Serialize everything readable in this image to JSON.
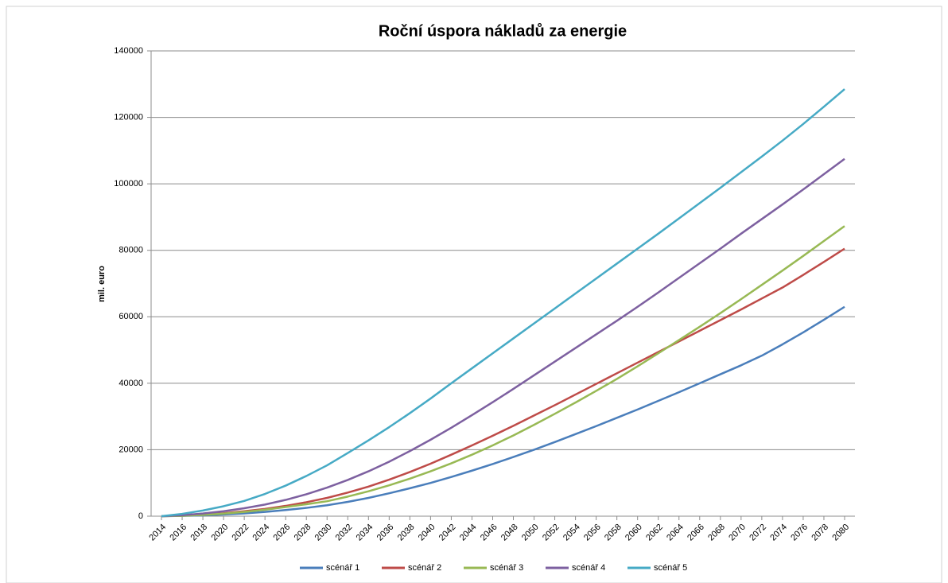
{
  "chart_data": {
    "type": "line",
    "title": "Roční úspora nákladů za energie",
    "y_label": "mil. euro",
    "categories": [
      "2014",
      "2016",
      "2018",
      "2020",
      "2022",
      "2024",
      "2026",
      "2028",
      "2030",
      "2032",
      "2034",
      "2036",
      "2038",
      "2040",
      "2042",
      "2044",
      "2046",
      "2048",
      "2050",
      "2052",
      "2054",
      "2056",
      "2058",
      "2060",
      "2062",
      "2064",
      "2066",
      "2068",
      "2070",
      "2072",
      "2074",
      "2076",
      "2078",
      "2080"
    ],
    "series": [
      {
        "name": "scénář 1",
        "color": "#4a7ebb",
        "values": [
          0,
          80,
          250,
          500,
          850,
          1300,
          1850,
          2500,
          3300,
          4300,
          5500,
          6900,
          8400,
          10000,
          11800,
          13700,
          15700,
          17800,
          20000,
          22300,
          24700,
          27100,
          29600,
          32100,
          34700,
          37300,
          40000,
          42700,
          45400,
          48300,
          51700,
          55300,
          59100,
          63000
        ]
      },
      {
        "name": "scénář 2",
        "color": "#be4b48",
        "values": [
          0,
          150,
          450,
          900,
          1500,
          2200,
          3100,
          4200,
          5500,
          7100,
          8900,
          11000,
          13300,
          15800,
          18500,
          21300,
          24200,
          27200,
          30300,
          33400,
          36600,
          39800,
          43000,
          46200,
          49400,
          52600,
          55800,
          59000,
          62200,
          65500,
          68800,
          72600,
          76500,
          80500
        ]
      },
      {
        "name": "scénář 3",
        "color": "#98b954",
        "values": [
          0,
          120,
          380,
          780,
          1300,
          1950,
          2750,
          3600,
          4500,
          5900,
          7500,
          9300,
          11300,
          13500,
          15900,
          18500,
          21300,
          24300,
          27500,
          30800,
          34200,
          37700,
          41300,
          45100,
          49000,
          53000,
          57000,
          61100,
          65300,
          69600,
          73900,
          78300,
          82800,
          87300
        ]
      },
      {
        "name": "scénář 4",
        "color": "#7d60a0",
        "values": [
          0,
          300,
          800,
          1500,
          2400,
          3500,
          4900,
          6600,
          8600,
          10900,
          13500,
          16400,
          19600,
          23000,
          26600,
          30400,
          34300,
          38300,
          42400,
          46500,
          50600,
          54700,
          58800,
          63000,
          67300,
          71700,
          76100,
          80500,
          85000,
          89400,
          93800,
          98300,
          102900,
          107500
        ]
      },
      {
        "name": "scénář 5",
        "color": "#46aac5",
        "values": [
          0,
          700,
          1700,
          3000,
          4600,
          6700,
          9200,
          12100,
          15300,
          19000,
          22800,
          26800,
          31000,
          35400,
          40000,
          44500,
          49000,
          53500,
          58000,
          62500,
          67000,
          71500,
          76000,
          80500,
          85000,
          89600,
          94200,
          98800,
          103500,
          108200,
          113000,
          118000,
          123200,
          128500
        ]
      }
    ],
    "ylim": [
      0,
      140000
    ],
    "yticks": [
      0,
      20000,
      40000,
      60000,
      80000,
      100000,
      120000,
      140000
    ],
    "grid": true,
    "legend": "bottom"
  }
}
